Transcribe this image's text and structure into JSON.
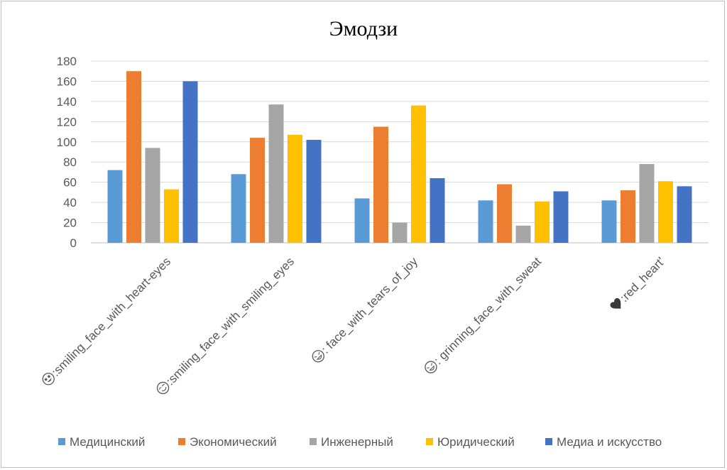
{
  "chart_data": {
    "type": "bar",
    "title": "Эмодзи",
    "xlabel": "",
    "ylabel": "",
    "ylim": [
      0,
      180
    ],
    "yticks": [
      0,
      20,
      40,
      60,
      80,
      100,
      120,
      140,
      160,
      180
    ],
    "grid": true,
    "legend_position": "bottom",
    "categories": [
      ":smiling_face_with_heart-eyes",
      ":smiling_face_with_smiling_eyes",
      ": face_with_tears_of_joy",
      ": grinning_face_with_sweat",
      ":red_heart'"
    ],
    "category_icons": [
      "smiling-face-heart-eyes-icon",
      "smiling-face-smiling-eyes-icon",
      "face-tears-of-joy-icon",
      "grinning-face-sweat-icon",
      "red-heart-icon"
    ],
    "series": [
      {
        "name": "Медицинский",
        "color": "#5b9bd5",
        "values": [
          72,
          68,
          44,
          42,
          42
        ]
      },
      {
        "name": "Экономический",
        "color": "#ed7d31",
        "values": [
          170,
          104,
          115,
          58,
          52
        ]
      },
      {
        "name": "Инженерный",
        "color": "#a5a5a5",
        "values": [
          94,
          137,
          20,
          17,
          78
        ]
      },
      {
        "name": "Юридический",
        "color": "#ffc000",
        "values": [
          53,
          107,
          136,
          41,
          61
        ]
      },
      {
        "name": "Медиа и искусство",
        "color": "#4472c4",
        "values": [
          160,
          102,
          64,
          51,
          56
        ]
      }
    ]
  }
}
